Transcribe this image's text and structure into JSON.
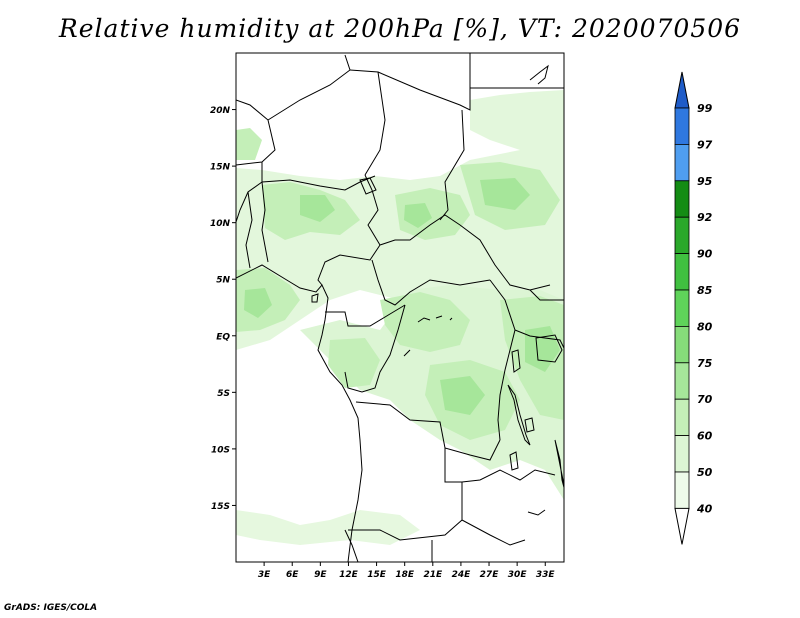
{
  "title": "Relative humidity at 200hPa [%], VT: 2020070506",
  "credit": "GrADS: IGES/COLA",
  "map": {
    "lat_range": [
      -20,
      25
    ],
    "lon_range": [
      0,
      35
    ],
    "lat_ticks": [
      {
        "value": 20,
        "label": "20N"
      },
      {
        "value": 15,
        "label": "15N"
      },
      {
        "value": 10,
        "label": "10N"
      },
      {
        "value": 5,
        "label": "5N"
      },
      {
        "value": 0,
        "label": "EQ"
      },
      {
        "value": -5,
        "label": "5S"
      },
      {
        "value": -10,
        "label": "10S"
      },
      {
        "value": -15,
        "label": "15S"
      }
    ],
    "lon_ticks": [
      {
        "value": 3,
        "label": "3E"
      },
      {
        "value": 6,
        "label": "6E"
      },
      {
        "value": 9,
        "label": "9E"
      },
      {
        "value": 12,
        "label": "12E"
      },
      {
        "value": 15,
        "label": "15E"
      },
      {
        "value": 18,
        "label": "18E"
      },
      {
        "value": 21,
        "label": "21E"
      },
      {
        "value": 24,
        "label": "24E"
      },
      {
        "value": 27,
        "label": "27E"
      },
      {
        "value": 30,
        "label": "30E"
      },
      {
        "value": 33,
        "label": "33E"
      }
    ]
  },
  "colorbar": {
    "levels": [
      {
        "label": "40",
        "color": "#eefbea"
      },
      {
        "label": "50",
        "color": "#dcf5d4"
      },
      {
        "label": "60",
        "color": "#c4efb8"
      },
      {
        "label": "70",
        "color": "#a6e69a"
      },
      {
        "label": "75",
        "color": "#86dc7a"
      },
      {
        "label": "80",
        "color": "#5fd35a"
      },
      {
        "label": "85",
        "color": "#40c040"
      },
      {
        "label": "90",
        "color": "#2aa82a"
      },
      {
        "label": "92",
        "color": "#148c14"
      },
      {
        "label": "95",
        "color": "#4f9ef0"
      },
      {
        "label": "97",
        "color": "#2f78e0"
      },
      {
        "label": "99",
        "color": "#1f5cc8"
      }
    ],
    "under_color": "#ffffff",
    "over_color": "#1f5cc8"
  }
}
